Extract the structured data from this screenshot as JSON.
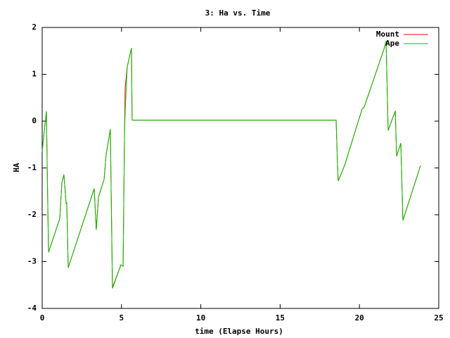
{
  "chart_data": {
    "type": "line",
    "title": "3: Ha vs. Time",
    "x_label": "time (Elapse Hours)",
    "y_label": "HA",
    "x": [
      0,
      0.18,
      0.27,
      0.31,
      0.4,
      1.11,
      1.24,
      1.37,
      1.51,
      1.55,
      1.64,
      3.28,
      3.41,
      3.55,
      3.9,
      4.03,
      4.3,
      4.34,
      4.43,
      4.96,
      5.1,
      5.19,
      5.23,
      5.36,
      5.63,
      5.67,
      18.53,
      18.62,
      18.66,
      19.06,
      20.17,
      20.3,
      21.54,
      21.68,
      21.81,
      22.26,
      22.34,
      22.61,
      22.74,
      23.85
    ],
    "series": [
      {
        "name": "Mount",
        "color": "#ff0000",
        "values": [
          -0.65,
          -0.05,
          0.21,
          -0.87,
          -2.8,
          -2.08,
          -1.32,
          -1.14,
          -1.77,
          -1.74,
          -3.13,
          -1.44,
          -2.32,
          -1.62,
          -1.25,
          -0.72,
          -0.17,
          -1.32,
          -3.57,
          -3.07,
          -3.1,
          -0.27,
          0.7,
          1.16,
          1.56,
          0.02,
          0.02,
          -0.95,
          -1.28,
          -0.95,
          0.26,
          0.3,
          1.53,
          1.71,
          -0.2,
          0.22,
          -0.75,
          -0.47,
          -2.12,
          -0.95
        ]
      },
      {
        "name": "Ape",
        "color": "#00c000",
        "values": [
          -0.65,
          -0.05,
          0.21,
          -0.87,
          -2.8,
          -2.08,
          -1.32,
          -1.14,
          -1.77,
          -1.74,
          -3.13,
          -1.44,
          -2.32,
          -1.62,
          -1.25,
          -0.72,
          -0.17,
          -1.32,
          -3.55,
          -3.07,
          -3.1,
          -0.27,
          0.18,
          1.16,
          1.56,
          0.02,
          0.02,
          -0.95,
          -1.28,
          -0.95,
          0.26,
          0.3,
          1.53,
          1.71,
          -0.2,
          0.22,
          -0.75,
          -0.47,
          -2.12,
          -0.95
        ]
      }
    ],
    "xlim": [
      0,
      25
    ],
    "xticks": [
      0,
      5,
      10,
      15,
      20,
      25
    ],
    "ylim": [
      -4,
      2
    ],
    "yticks": [
      -4,
      -3,
      -2,
      -1,
      0,
      1,
      2
    ],
    "legend": "upper right"
  }
}
